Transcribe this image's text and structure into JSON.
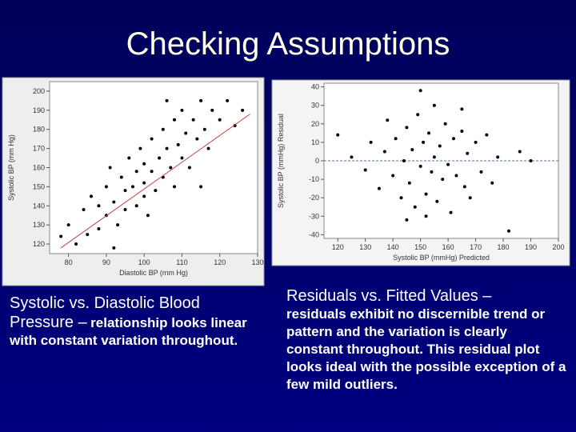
{
  "slide": {
    "title": "Checking Assumptions",
    "captions": [
      {
        "lead": "Systolic vs. Diastolic Blood Pressure –",
        "detail": "relationship looks linear with constant variation throughout."
      },
      {
        "lead": "Residuals vs. Fitted Values –",
        "detail": "residuals exhibit no discernible trend or pattern and the variation is clearly constant throughout.  This residual plot looks ideal with the possible exception of a few mild outliers."
      }
    ]
  },
  "chart_data": [
    {
      "type": "scatter",
      "x_label": "Diastolic BP (mm Hg)",
      "y_label": "Systolic BP (mm Hg)",
      "color": "#000000",
      "xlim": [
        75,
        130
      ],
      "ylim": [
        115,
        205
      ],
      "xticks": [
        80,
        90,
        100,
        110,
        120,
        130
      ],
      "yticks": [
        120,
        130,
        140,
        150,
        160,
        170,
        180,
        190,
        200
      ],
      "x": [
        80,
        82,
        84,
        85,
        86,
        88,
        88,
        90,
        90,
        91,
        92,
        93,
        94,
        95,
        95,
        96,
        97,
        98,
        98,
        99,
        100,
        100,
        100,
        101,
        102,
        102,
        103,
        104,
        105,
        105,
        106,
        107,
        108,
        108,
        109,
        110,
        110,
        111,
        112,
        113,
        114,
        115,
        116,
        117,
        118,
        120,
        122,
        124,
        126,
        78,
        92,
        106,
        115
      ],
      "y": [
        130,
        120,
        138,
        125,
        145,
        140,
        128,
        150,
        135,
        160,
        142,
        130,
        155,
        148,
        138,
        165,
        150,
        140,
        158,
        170,
        152,
        145,
        162,
        135,
        175,
        158,
        148,
        165,
        155,
        180,
        170,
        160,
        150,
        185,
        172,
        165,
        190,
        178,
        160,
        185,
        175,
        195,
        180,
        170,
        190,
        185,
        195,
        182,
        190,
        124,
        118,
        195,
        150
      ],
      "fit_line": {
        "x": [
          78,
          128
        ],
        "y": [
          118,
          188
        ],
        "color": "#c04040"
      }
    },
    {
      "type": "scatter",
      "x_label": "Systolic BP (mmHg) Predicted",
      "y_label": "Systolic BP (mmHg) Residual",
      "color": "#000000",
      "xlim": [
        115,
        200
      ],
      "ylim": [
        -42,
        42
      ],
      "xticks": [
        120,
        130,
        140,
        150,
        160,
        170,
        180,
        190,
        200
      ],
      "yticks": [
        -40,
        -30,
        -20,
        -10,
        0,
        10,
        20,
        30,
        40
      ],
      "x": [
        120,
        125,
        130,
        132,
        135,
        137,
        138,
        140,
        141,
        143,
        144,
        145,
        146,
        147,
        148,
        149,
        150,
        151,
        152,
        153,
        154,
        155,
        155,
        156,
        157,
        158,
        159,
        160,
        161,
        162,
        163,
        165,
        166,
        167,
        168,
        170,
        172,
        174,
        176,
        178,
        182,
        186,
        190,
        150,
        152,
        145,
        165
      ],
      "y": [
        14,
        2,
        -5,
        10,
        -15,
        5,
        22,
        -8,
        12,
        -20,
        0,
        18,
        -12,
        6,
        -25,
        25,
        -3,
        10,
        -18,
        15,
        -6,
        30,
        2,
        -22,
        8,
        -10,
        20,
        -2,
        -28,
        12,
        -8,
        16,
        -14,
        4,
        -20,
        10,
        -6,
        14,
        -12,
        2,
        -38,
        5,
        0,
        38,
        -30,
        -32,
        28
      ],
      "hline": 0,
      "hline_color": "#4a7ab0"
    }
  ]
}
